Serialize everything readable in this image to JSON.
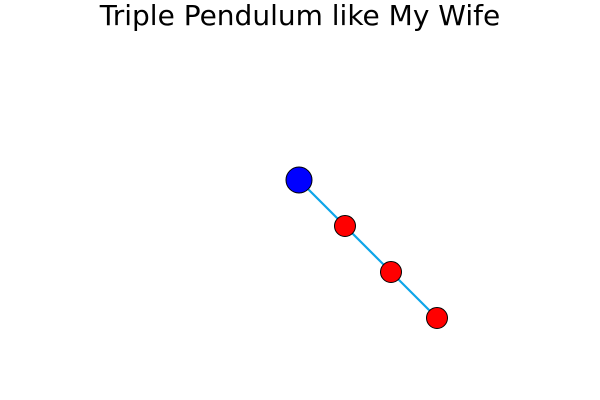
{
  "header": {
    "title": "Triple Pendulum like My Wife"
  },
  "pendulum": {
    "pivot_color": "#0000ff",
    "bob_color": "#ff0000",
    "rod_color": "#0ea5e9",
    "outline_color": "#000000",
    "bob_count": 3
  }
}
